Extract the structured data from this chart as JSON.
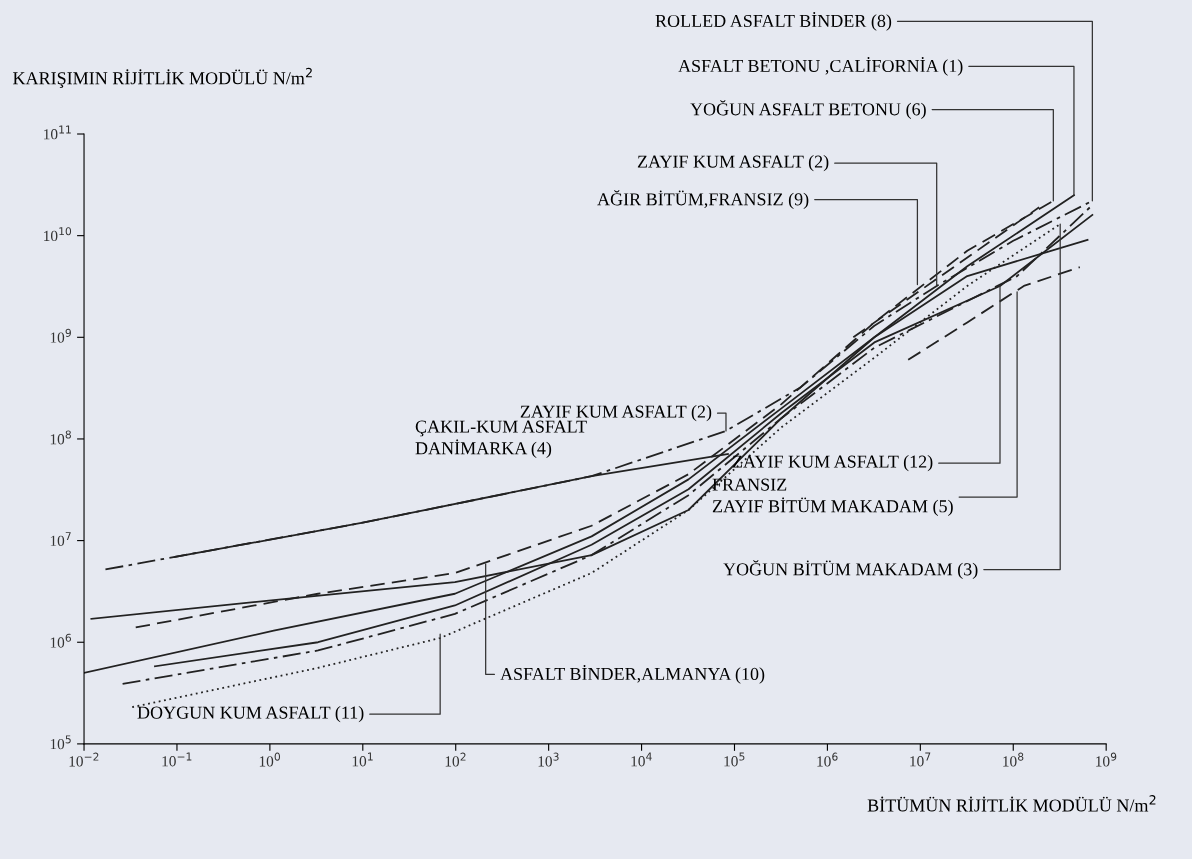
{
  "chart_data": {
    "type": "line",
    "xlabel": "BİTÜMÜN RİJİTLİK MODÜLÜ N/m$^{2}$",
    "ylabel": "KARIŞIMIN RİJİTLİK MODÜLÜ N/m$^{2}$",
    "log": "xy",
    "grid": false,
    "legend": false,
    "marker": "none",
    "xlim": [
      0.01,
      1000000000.0
    ],
    "ylim": [
      100000.0,
      100000000000.0
    ],
    "xticks": [
      {
        "value": 0.01,
        "label": "10$^{−2}$"
      },
      {
        "value": 0.1,
        "label": "10$^{−1}$"
      },
      {
        "value": 1,
        "label": "10$^{0}$"
      },
      {
        "value": 10,
        "label": "10$^{1}$"
      },
      {
        "value": 100,
        "label": "10$^{2}$"
      },
      {
        "value": 1000,
        "label": "10$^{3}$"
      },
      {
        "value": 10000.0,
        "label": "10$^{4}$"
      },
      {
        "value": 100000.0,
        "label": "10$^{5}$"
      },
      {
        "value": 1000000.0,
        "label": "10$^{6}$"
      },
      {
        "value": 10000000.0,
        "label": "10$^{7}$"
      },
      {
        "value": 100000000.0,
        "label": "10$^{8}$"
      },
      {
        "value": 1000000000.0,
        "label": "10$^{9}$"
      }
    ],
    "yticks": [
      {
        "value": 100000.0,
        "label": "10$^{5}$"
      },
      {
        "value": 1000000.0,
        "label": "10$^{6}$"
      },
      {
        "value": 10000000.0,
        "label": "10$^{7}$"
      },
      {
        "value": 100000000.0,
        "label": "10$^{8}$"
      },
      {
        "value": 1000000000.0,
        "label": "10$^{9}$"
      },
      {
        "value": 10000000000.0,
        "label": "10$^{10}$"
      },
      {
        "value": 100000000000.0,
        "label": "10$^{11}$"
      }
    ],
    "series": [
      {
        "color": "#222222",
        "line_style": "dashdot",
        "x": [
          0.017,
          10,
          2900,
          81000,
          510000,
          3200000,
          15000000,
          100000000,
          710000000
        ],
        "values": [
          5200000,
          15000000,
          43000000,
          120000000,
          320000000,
          1300000000,
          3200000000,
          8900000000,
          22000000000
        ]
      },
      {
        "color": "#222222",
        "line_style": "solid",
        "x": [
          0.095,
          10,
          2900,
          85000
        ],
        "values": [
          6900000,
          15000000,
          43000000,
          71000000
        ]
      },
      {
        "color": "#222222",
        "line_style": "solid",
        "x": [
          0.012,
          1.1,
          98,
          2900,
          32000,
          320000,
          3200000,
          32000000,
          450000000
        ],
        "values": [
          1700000,
          2600000,
          3900000,
          7200000,
          20000000,
          160000000,
          1000000000,
          5000000000,
          25000000000
        ]
      },
      {
        "color": "#222222",
        "line_style": "dashed",
        "x": [
          0.036,
          3.3,
          98,
          2900,
          32000,
          320000,
          3200000,
          32000000,
          270000000
        ],
        "values": [
          1400000,
          3000000,
          4800000,
          14000000,
          45000000,
          220000000,
          1400000000,
          7100000000,
          22000000000
        ]
      },
      {
        "color": "#222222",
        "line_style": "solid",
        "x": [
          0.01,
          1.1,
          98,
          2900,
          32000,
          320000,
          3200000,
          32000000,
          630000000
        ],
        "values": [
          500000,
          1300000,
          3000000,
          11000000,
          40000000,
          200000000,
          1000000000,
          4000000000,
          9100000000
        ]
      },
      {
        "color": "#222222",
        "line_style": "solid",
        "x": [
          0.058,
          3.3,
          98,
          2900,
          32000,
          320000,
          3200000,
          72000000,
          710000000
        ],
        "values": [
          580000,
          1000000,
          2300000,
          9100000,
          32000000,
          180000000,
          890000000,
          3200000000,
          16000000000
        ]
      },
      {
        "color": "#222222",
        "line_style": "dashdot",
        "x": [
          0.026,
          3.3,
          98,
          2900,
          32000,
          320000,
          3200000,
          110000000,
          710000000
        ],
        "values": [
          390000,
          830000,
          1900000,
          7200000,
          28000000,
          160000000,
          790000000,
          4000000000,
          20000000000
        ]
      },
      {
        "color": "#222222",
        "line_style": "dotted",
        "x": [
          0.033,
          3.3,
          68,
          2900,
          32000,
          320000,
          3200000,
          32000000,
          320000000
        ],
        "values": [
          230000,
          560000,
          1100000,
          4800000,
          20000000,
          130000000,
          630000000,
          3200000000,
          13000000000
        ]
      },
      {
        "color": "#222222",
        "line_style": "dashed",
        "x": [
          7400000,
          32000000,
          130000000,
          520000000
        ],
        "values": [
          600000000,
          1400000000,
          3200000000,
          4900000000
        ]
      },
      {
        "color": "#222222",
        "line_style": "dashed",
        "x": [
          1900000,
          190000000
        ],
        "values": [
          1000000000,
          19000000000
        ]
      }
    ],
    "annotations": [
      {
        "text": "ROLLED ASFALT BİNDER (8)",
        "x": 710000000,
        "y": 22000000000
      },
      {
        "text": "ASFALT BETONU ,CALİFORNİA (1)",
        "x": 450000000,
        "y": 25000000000
      },
      {
        "text": "YOĞUN ASFALT BETONU (6)",
        "x": 270000000,
        "y": 22000000000
      },
      {
        "text": "ZAYIF KUM ASFALT (2)",
        "x": 15000000,
        "y": 3200000000
      },
      {
        "text": "AĞIR BİTÜM,FRANSIZ (9)",
        "x": 9300000,
        "y": 3300000000
      },
      {
        "text": "ZAYIF KUM ASFALT (2)",
        "x": 81000,
        "y": 120000000
      },
      "ÇAKIL-KUM ASFALT\nDANİMARKA (4)",
      {
        "text": "ZAYIF KUM ASFALT (12)",
        "x": 72000000,
        "y": 3200000000
      },
      {
        "text": "FRANSIZ\nZAYIF BİTÜM MAKADAM (5)",
        "x": 110000000,
        "y": 2800000000
      },
      {
        "text": "YOĞUN BİTÜM MAKADAM (3)",
        "x": 320000000,
        "y": 13000000000
      },
      {
        "text": "ASFALT BİNDER,ALMANYA (10)",
        "x": 210,
        "y": 5900000
      },
      {
        "text": "DOYGUN KUM ASFALT (11)",
        "x": 68,
        "y": 1200000
      }
    ]
  }
}
